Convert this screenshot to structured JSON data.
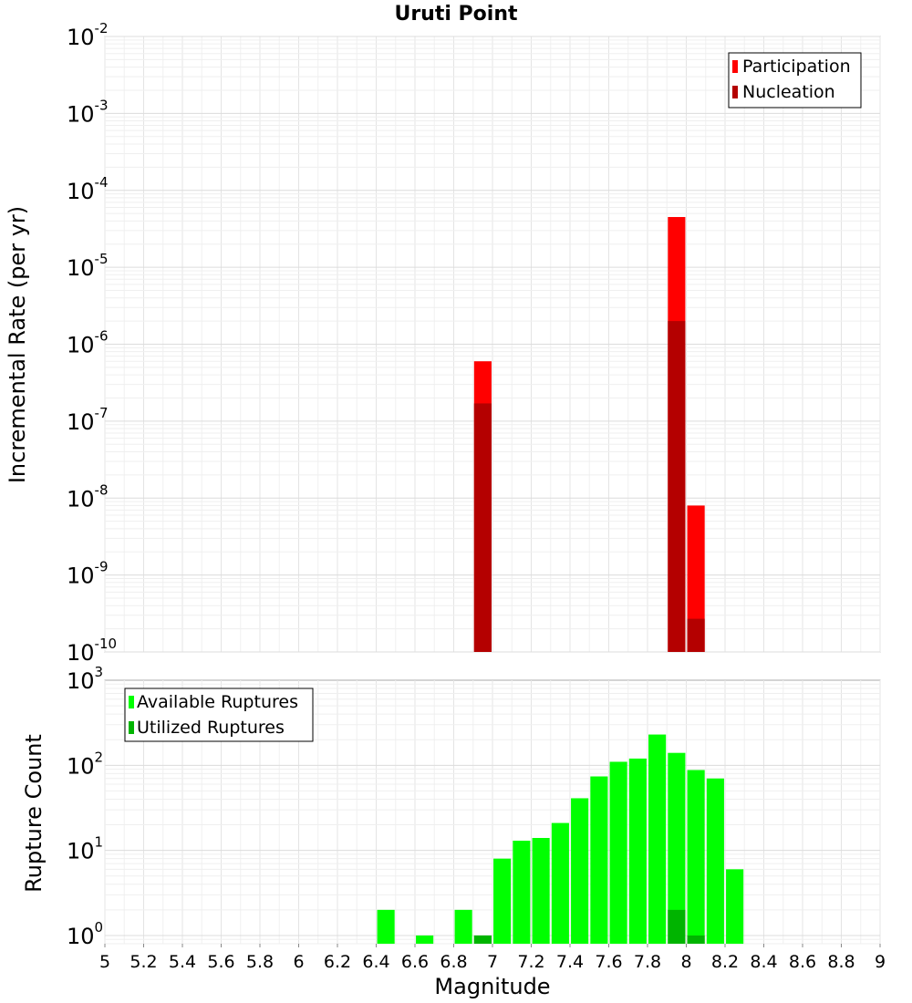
{
  "chart_data": [
    {
      "type": "bar",
      "title": "Uruti Point",
      "xlabel": "",
      "ylabel": "Incremental Rate (per yr)",
      "yscale": "log",
      "ylim": [
        1e-10,
        0.01
      ],
      "xlim": [
        5,
        9
      ],
      "grid": true,
      "legend_position": "top-right",
      "legend": [
        "Participation",
        "Nucleation"
      ],
      "colors": {
        "Participation": "#ff0000",
        "Nucleation": "#b40000"
      },
      "series": [
        {
          "name": "Participation",
          "x": [
            6.95,
            7.95,
            8.05
          ],
          "values": [
            6e-07,
            4.5e-05,
            8e-09
          ]
        },
        {
          "name": "Nucleation",
          "x": [
            6.95,
            7.95,
            8.05
          ],
          "values": [
            1.7e-07,
            2e-06,
            2.7e-10
          ]
        }
      ]
    },
    {
      "type": "bar",
      "title": "",
      "xlabel": "Magnitude",
      "ylabel": "Rupture Count",
      "yscale": "log",
      "ylim": [
        0.8,
        1000
      ],
      "xlim": [
        5,
        9
      ],
      "grid": true,
      "legend_position": "top-left",
      "legend": [
        "Available Ruptures",
        "Utilized Ruptures"
      ],
      "colors": {
        "Available Ruptures": "#00ff00",
        "Utilized Ruptures": "#00b400"
      },
      "series": [
        {
          "name": "Available Ruptures",
          "x": [
            6.45,
            6.65,
            6.85,
            6.95,
            7.05,
            7.15,
            7.25,
            7.35,
            7.45,
            7.55,
            7.65,
            7.75,
            7.85,
            7.95,
            8.05,
            8.15,
            8.25
          ],
          "values": [
            2,
            1,
            2,
            1,
            8,
            13,
            14,
            21,
            41,
            74,
            110,
            120,
            230,
            140,
            88,
            70,
            6
          ]
        },
        {
          "name": "Utilized Ruptures",
          "x": [
            6.95,
            7.95,
            8.05
          ],
          "values": [
            1,
            2,
            1
          ]
        }
      ]
    }
  ],
  "x_ticks": [
    "5",
    "5.2",
    "5.4",
    "5.6",
    "5.8",
    "6",
    "6.2",
    "6.4",
    "6.6",
    "6.8",
    "7",
    "7.2",
    "7.4",
    "7.6",
    "7.8",
    "8",
    "8.2",
    "8.4",
    "8.6",
    "8.8",
    "9"
  ],
  "top_y_ticks": [
    {
      "base": "10",
      "exp": "-2"
    },
    {
      "base": "10",
      "exp": "-3"
    },
    {
      "base": "10",
      "exp": "-4"
    },
    {
      "base": "10",
      "exp": "-5"
    },
    {
      "base": "10",
      "exp": "-6"
    },
    {
      "base": "10",
      "exp": "-7"
    },
    {
      "base": "10",
      "exp": "-8"
    },
    {
      "base": "10",
      "exp": "-9"
    },
    {
      "base": "10",
      "exp": "-10"
    }
  ],
  "bottom_y_ticks": [
    {
      "base": "10",
      "exp": "3"
    },
    {
      "base": "10",
      "exp": "2"
    },
    {
      "base": "10",
      "exp": "1"
    },
    {
      "base": "10",
      "exp": "0"
    }
  ]
}
